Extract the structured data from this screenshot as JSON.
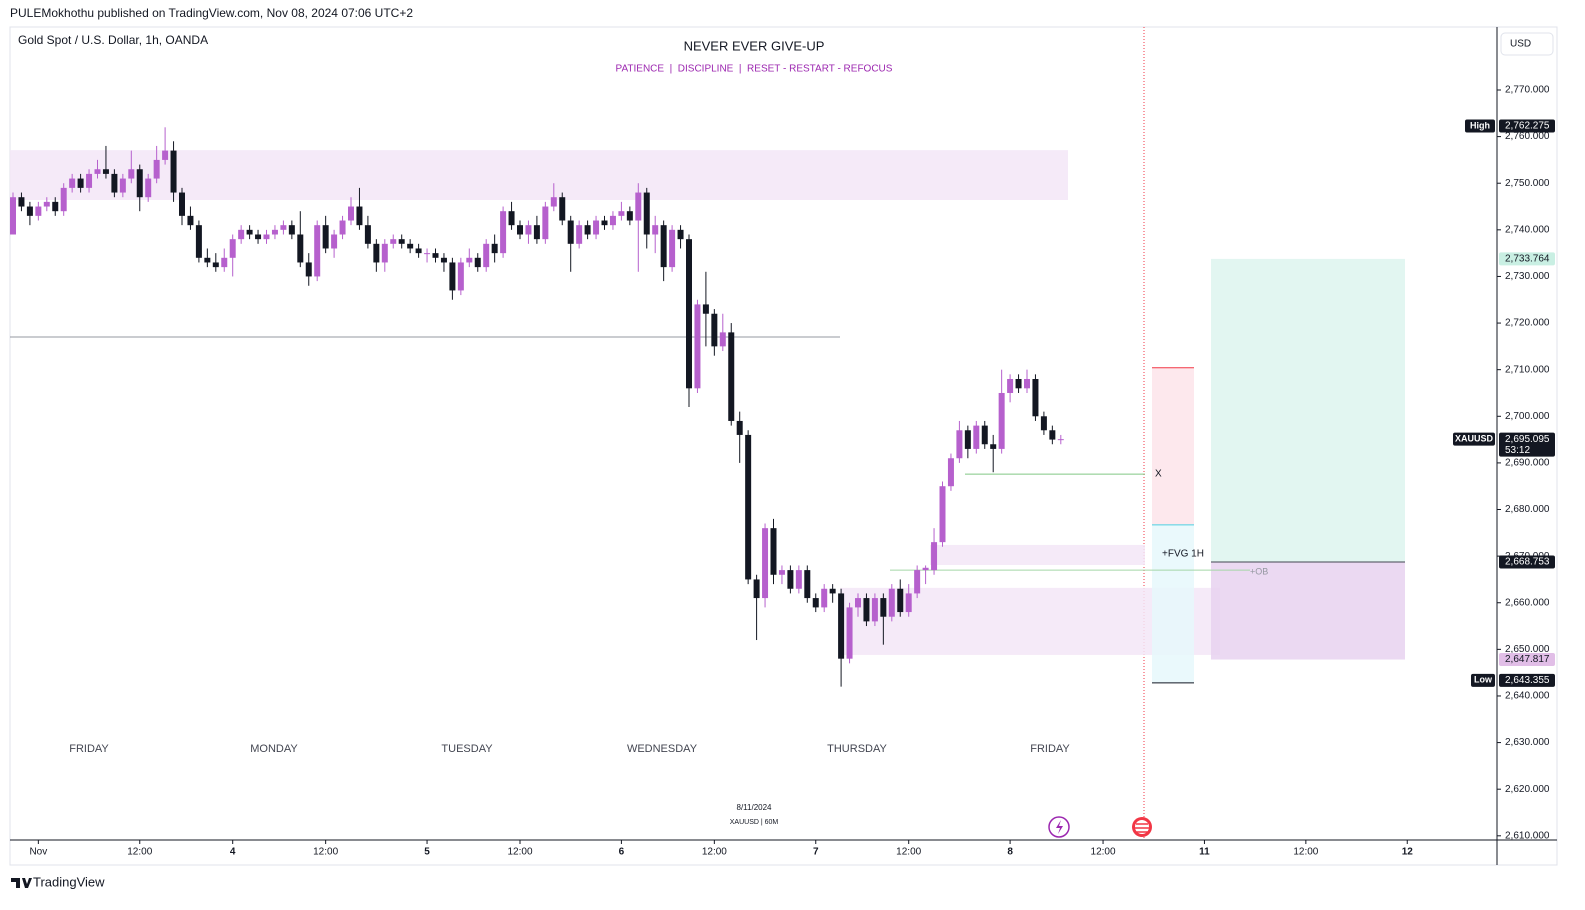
{
  "header": {
    "publisher": "PULEMokhothu published on TradingView.com, Nov 08, 2024 07:06 UTC+2",
    "symbol": "Gold Spot / U.S. Dollar, 1h, OANDA",
    "currency": "USD",
    "brand": "TradingView"
  },
  "chart_data": {
    "type": "candlestick",
    "title": "NEVER EVER GIVE-UP",
    "subtitle": "PATIENCE  |  DISCIPLINE  |  RESET - RESTART - REFOCUS",
    "up_color": "#b660cd",
    "down_color": "#131722",
    "ohlc": [
      [
        2739,
        2748,
        2739,
        2747
      ],
      [
        2747,
        2748,
        2744,
        2745
      ],
      [
        2745,
        2746,
        2741,
        2743
      ],
      [
        2743,
        2746,
        2742,
        2745
      ],
      [
        2745,
        2747,
        2744,
        2746
      ],
      [
        2746,
        2747,
        2743,
        2744
      ],
      [
        2744,
        2750,
        2743,
        2749
      ],
      [
        2749,
        2752,
        2748,
        2751
      ],
      [
        2751,
        2752,
        2748,
        2749
      ],
      [
        2749,
        2753,
        2748,
        2752
      ],
      [
        2752,
        2755,
        2751,
        2753
      ],
      [
        2753,
        2758,
        2751,
        2752
      ],
      [
        2752,
        2753,
        2747,
        2748
      ],
      [
        2748,
        2752,
        2747,
        2751
      ],
      [
        2751,
        2757,
        2750,
        2753
      ],
      [
        2753,
        2754,
        2744,
        2747
      ],
      [
        2747,
        2752,
        2746,
        2751
      ],
      [
        2751,
        2758,
        2750,
        2755
      ],
      [
        2755,
        2762,
        2754,
        2757
      ],
      [
        2757,
        2759,
        2746,
        2748
      ],
      [
        2748,
        2749,
        2741,
        2743
      ],
      [
        2743,
        2745,
        2740,
        2741
      ],
      [
        2741,
        2742,
        2733,
        2734
      ],
      [
        2734,
        2736,
        2732,
        2733
      ],
      [
        2733,
        2735,
        2731,
        2732
      ],
      [
        2732,
        2736,
        2731,
        2734
      ],
      [
        2734,
        2739,
        2730,
        2738
      ],
      [
        2738,
        2741,
        2737,
        2740
      ],
      [
        2740,
        2741,
        2738,
        2739
      ],
      [
        2739,
        2740,
        2737,
        2738
      ],
      [
        2738,
        2740,
        2737,
        2739
      ],
      [
        2739,
        2741,
        2738,
        2740
      ],
      [
        2740,
        2742,
        2739,
        2741
      ],
      [
        2741,
        2742,
        2738,
        2739
      ],
      [
        2739,
        2744,
        2732,
        2733
      ],
      [
        2733,
        2735,
        2728,
        2730
      ],
      [
        2730,
        2742,
        2729,
        2741
      ],
      [
        2741,
        2743,
        2735,
        2736
      ],
      [
        2736,
        2740,
        2734,
        2739
      ],
      [
        2739,
        2743,
        2738,
        2742
      ],
      [
        2742,
        2747,
        2741,
        2745
      ],
      [
        2745,
        2749,
        2740,
        2741
      ],
      [
        2741,
        2743,
        2736,
        2737
      ],
      [
        2737,
        2738,
        2731,
        2733
      ],
      [
        2733,
        2738,
        2731,
        2737
      ],
      [
        2737,
        2739,
        2736,
        2738
      ],
      [
        2738,
        2739,
        2736,
        2737
      ],
      [
        2737,
        2738,
        2735,
        2736
      ],
      [
        2736,
        2737,
        2734,
        2735
      ],
      [
        2735,
        2736,
        2733,
        2735
      ],
      [
        2735,
        2736,
        2733,
        2734
      ],
      [
        2734,
        2735,
        2731,
        2733
      ],
      [
        2733,
        2734,
        2725,
        2727
      ],
      [
        2727,
        2734,
        2726,
        2733
      ],
      [
        2733,
        2736,
        2732,
        2734
      ],
      [
        2734,
        2735,
        2731,
        2732
      ],
      [
        2732,
        2738,
        2731,
        2737
      ],
      [
        2737,
        2739,
        2733,
        2735
      ],
      [
        2735,
        2745,
        2734,
        2744
      ],
      [
        2744,
        2746,
        2740,
        2741
      ],
      [
        2741,
        2742,
        2738,
        2739
      ],
      [
        2739,
        2742,
        2737,
        2741
      ],
      [
        2741,
        2743,
        2737,
        2738
      ],
      [
        2738,
        2746,
        2737,
        2745
      ],
      [
        2745,
        2750,
        2744,
        2747
      ],
      [
        2747,
        2748,
        2741,
        2742
      ],
      [
        2742,
        2743,
        2731,
        2737
      ],
      [
        2737,
        2742,
        2736,
        2741
      ],
      [
        2741,
        2742,
        2738,
        2739
      ],
      [
        2739,
        2743,
        2738,
        2742
      ],
      [
        2742,
        2743,
        2740,
        2741
      ],
      [
        2741,
        2744,
        2740,
        2743
      ],
      [
        2743,
        2746,
        2742,
        2744
      ],
      [
        2744,
        2745,
        2741,
        2742
      ],
      [
        2742,
        2750,
        2731,
        2748
      ],
      [
        2748,
        2749,
        2736,
        2739
      ],
      [
        2739,
        2743,
        2735,
        2741
      ],
      [
        2741,
        2742,
        2729,
        2732
      ],
      [
        2732,
        2741,
        2731,
        2740
      ],
      [
        2740,
        2741,
        2736,
        2738
      ],
      [
        2738,
        2739,
        2702,
        2706
      ],
      [
        2706,
        2725,
        2705,
        2724
      ],
      [
        2724,
        2731,
        2715,
        2722
      ],
      [
        2722,
        2723,
        2713,
        2715
      ],
      [
        2715,
        2722,
        2714,
        2718
      ],
      [
        2718,
        2720,
        2698,
        2699
      ],
      [
        2699,
        2701,
        2690,
        2696
      ],
      [
        2696,
        2697,
        2664,
        2665
      ],
      [
        2665,
        2666,
        2652,
        2661
      ],
      [
        2661,
        2677,
        2659,
        2676
      ],
      [
        2676,
        2678,
        2664,
        2666
      ],
      [
        2666,
        2668,
        2664,
        2667
      ],
      [
        2667,
        2668,
        2662,
        2663
      ],
      [
        2663,
        2668,
        2662,
        2667
      ],
      [
        2667,
        2668,
        2660,
        2661
      ],
      [
        2661,
        2662,
        2658,
        2659
      ],
      [
        2659,
        2664,
        2658,
        2663
      ],
      [
        2663,
        2664,
        2660,
        2662
      ],
      [
        2662,
        2663,
        2642,
        2648
      ],
      [
        2648,
        2660,
        2647,
        2659
      ],
      [
        2659,
        2662,
        2657,
        2661
      ],
      [
        2661,
        2662,
        2655,
        2656
      ],
      [
        2656,
        2662,
        2655,
        2661
      ],
      [
        2661,
        2662,
        2651,
        2657
      ],
      [
        2657,
        2664,
        2656,
        2663
      ],
      [
        2663,
        2665,
        2657,
        2658
      ],
      [
        2658,
        2664,
        2657,
        2662
      ],
      [
        2662,
        2668,
        2661,
        2667
      ],
      [
        2667,
        2668,
        2664,
        2667.5
      ],
      [
        2667,
        2676,
        2666,
        2673
      ],
      [
        2673,
        2686,
        2672,
        2685
      ],
      [
        2685,
        2692,
        2684,
        2691
      ],
      [
        2691,
        2699,
        2690,
        2697
      ],
      [
        2697,
        2698,
        2691,
        2693
      ],
      [
        2693,
        2699,
        2692,
        2698
      ],
      [
        2698,
        2699,
        2693,
        2694
      ],
      [
        2694,
        2696,
        2688,
        2693
      ],
      [
        2693,
        2710,
        2692,
        2705
      ],
      [
        2705,
        2709,
        2703,
        2708
      ],
      [
        2708,
        2709,
        2705,
        2706
      ],
      [
        2706,
        2710,
        2705,
        2708
      ],
      [
        2708,
        2709,
        2699,
        2700
      ],
      [
        2700,
        2701,
        2696,
        2697
      ],
      [
        2697,
        2698,
        2694,
        2695
      ],
      [
        2695,
        2696,
        2694,
        2695.095
      ]
    ],
    "ylim": [
      2609.1,
      2783.3
    ],
    "yticks": [
      {
        "value": 2610,
        "label": "2,610.000"
      },
      {
        "value": 2620,
        "label": "2,620.000"
      },
      {
        "value": 2630,
        "label": "2,630.000"
      },
      {
        "value": 2640,
        "label": "2,640.000"
      },
      {
        "value": 2650,
        "label": "2,650.000"
      },
      {
        "value": 2660,
        "label": "2,660.000"
      },
      {
        "value": 2670,
        "label": "2,670.000"
      },
      {
        "value": 2680,
        "label": "2,680.000"
      },
      {
        "value": 2690,
        "label": "2,690.000"
      },
      {
        "value": 2700,
        "label": "2,700.000"
      },
      {
        "value": 2710,
        "label": "2,710.000"
      },
      {
        "value": 2720,
        "label": "2,720.000"
      },
      {
        "value": 2730,
        "label": "2,730.000"
      },
      {
        "value": 2740,
        "label": "2,740.000"
      },
      {
        "value": 2750,
        "label": "2,750.000"
      },
      {
        "value": 2760,
        "label": "2,760.000"
      },
      {
        "value": 2770,
        "label": "2,770.000"
      }
    ],
    "xticks": [
      {
        "value": 3,
        "label": "Nov"
      },
      {
        "value": 15,
        "label": "12:00"
      },
      {
        "value": 26,
        "label": "4"
      },
      {
        "value": 37,
        "label": "12:00"
      },
      {
        "value": 49,
        "label": "5"
      },
      {
        "value": 60,
        "label": "12:00"
      },
      {
        "value": 72,
        "label": "6"
      },
      {
        "value": 83,
        "label": "12:00"
      },
      {
        "value": 95,
        "label": "7"
      },
      {
        "value": 106,
        "label": "12:00"
      },
      {
        "value": 118,
        "label": "8"
      },
      {
        "value": 129,
        "label": "12:00"
      },
      {
        "value": 141,
        "label": "11"
      },
      {
        "value": 153,
        "label": "12:00"
      },
      {
        "value": 165,
        "label": "12"
      }
    ],
    "day_labels": [
      "FRIDAY",
      "MONDAY",
      "TUESDAY",
      "WEDNESDAY",
      "THURSDAY",
      "FRIDAY"
    ],
    "zones": [
      {
        "top": 2757.1,
        "bottom": 2746.4,
        "color": "#f3e6f7"
      },
      {
        "top": 2672.4,
        "bottom": 2668.1,
        "color": "#f3e6f7"
      },
      {
        "top": 2663.2,
        "bottom": 2648.8,
        "color": "#f3e6f7"
      },
      {
        "top": 2710.4,
        "bottom": 2676.7,
        "color": "#fde4ea"
      },
      {
        "top": 2676.7,
        "bottom": 2642.8,
        "color": "#e6f8fb"
      },
      {
        "top": 2733.764,
        "bottom": 2668.753,
        "color": "#ddf4ee"
      },
      {
        "top": 2668.753,
        "bottom": 2647.817,
        "color": "#e8d2f0"
      }
    ],
    "levels": [
      {
        "value": 2717,
        "color": "#9598a1"
      },
      {
        "value": 2687.6,
        "color": "#81c784"
      },
      {
        "value": 2667,
        "color": "#a5d6a7"
      },
      {
        "value": 2710.4,
        "color": "#f23645"
      },
      {
        "value": 2676.7,
        "color": "#4dd0e1"
      },
      {
        "value": 2642.8,
        "color": "#131722"
      },
      {
        "value": 2668.753,
        "color": "#434651"
      }
    ],
    "annotations": [
      "X",
      "+FVG 1H",
      "+OB"
    ],
    "price_labels": [
      {
        "tag": "High",
        "value": 2762.275,
        "label": "2,762.275",
        "bg": "#131722",
        "fg": "#ffffff"
      },
      {
        "value": 2733.764,
        "label": "2,733.764",
        "bg": "#c9efe3",
        "fg": "#131722"
      },
      {
        "tag": "XAUUSD",
        "value": 2695.095,
        "label": "2,695.095",
        "countdown": "53:12",
        "bg": "#131722",
        "fg": "#ffffff"
      },
      {
        "value": 2668.753,
        "label": "2,668.753",
        "bg": "#131722",
        "fg": "#ffffff"
      },
      {
        "value": 2647.817,
        "label": "2,647.817",
        "bg": "#e1bee7",
        "fg": "#131722"
      },
      {
        "tag": "Low",
        "value": 2643.355,
        "label": "2,643.355",
        "bg": "#131722",
        "fg": "#ffffff"
      }
    ],
    "watermark": [
      "8/11/2024",
      "XAUUSD | 60M"
    ]
  }
}
